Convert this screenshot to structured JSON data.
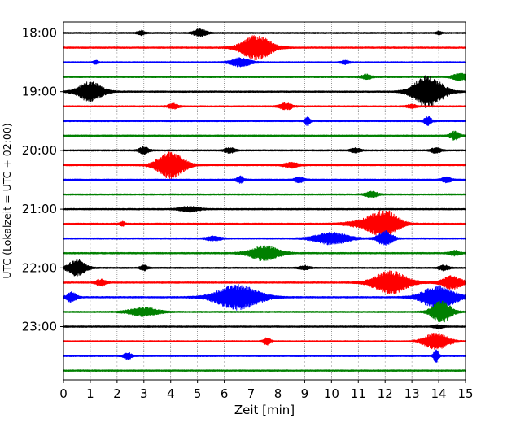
{
  "chart_data": {
    "type": "line",
    "title": "",
    "xlabel": "Zeit  [min]",
    "ylabel": "UTC (Lokalzeit = UTC + 02:00)",
    "xlim": [
      0,
      15
    ],
    "x_ticks": [
      "0",
      "1",
      "2",
      "3",
      "4",
      "5",
      "6",
      "7",
      "8",
      "9",
      "10",
      "11",
      "12",
      "13",
      "14",
      "15"
    ],
    "y_ticks": [
      "18:00",
      "19:00",
      "20:00",
      "21:00",
      "22:00",
      "23:00"
    ],
    "grid": "vertical dotted at each minute",
    "row_interval_minutes": 15,
    "start_time": "18:00",
    "color_cycle": [
      "#000000",
      "#ff0000",
      "#0000ff",
      "#008000"
    ],
    "series": [
      {
        "start": "18:00",
        "noise": 0.9,
        "events": [
          {
            "x": 2.9,
            "amp": 2.5,
            "width": 0.15
          },
          {
            "x": 5.1,
            "amp": 4.5,
            "width": 0.25
          },
          {
            "x": 14.0,
            "amp": 2,
            "width": 0.1
          }
        ]
      },
      {
        "start": "18:15",
        "noise": 0.9,
        "events": [
          {
            "x": 7.2,
            "amp": 15,
            "width": 0.6
          }
        ]
      },
      {
        "start": "18:30",
        "noise": 0.9,
        "events": [
          {
            "x": 1.2,
            "amp": 2,
            "width": 0.1
          },
          {
            "x": 6.6,
            "amp": 5,
            "width": 0.4
          },
          {
            "x": 10.5,
            "amp": 2,
            "width": 0.15
          }
        ]
      },
      {
        "start": "18:45",
        "noise": 0.9,
        "events": [
          {
            "x": 11.3,
            "amp": 3,
            "width": 0.2
          },
          {
            "x": 14.8,
            "amp": 4,
            "width": 0.3
          }
        ]
      },
      {
        "start": "19:00",
        "noise": 0.9,
        "events": [
          {
            "x": 1.0,
            "amp": 12,
            "width": 0.5
          },
          {
            "x": 13.6,
            "amp": 20,
            "width": 0.6
          }
        ]
      },
      {
        "start": "19:15",
        "noise": 0.9,
        "events": [
          {
            "x": 4.1,
            "amp": 3,
            "width": 0.2
          },
          {
            "x": 8.3,
            "amp": 4,
            "width": 0.25
          },
          {
            "x": 13.0,
            "amp": 2,
            "width": 0.2
          }
        ]
      },
      {
        "start": "19:30",
        "noise": 0.9,
        "events": [
          {
            "x": 9.1,
            "amp": 6,
            "width": 0.1
          },
          {
            "x": 13.6,
            "amp": 5,
            "width": 0.15
          }
        ]
      },
      {
        "start": "19:45",
        "noise": 0.9,
        "events": [
          {
            "x": 14.6,
            "amp": 5,
            "width": 0.2
          }
        ]
      },
      {
        "start": "20:00",
        "noise": 0.9,
        "events": [
          {
            "x": 3.0,
            "amp": 4,
            "width": 0.2
          },
          {
            "x": 6.2,
            "amp": 3,
            "width": 0.2
          },
          {
            "x": 10.9,
            "amp": 2.5,
            "width": 0.2
          },
          {
            "x": 13.9,
            "amp": 3,
            "width": 0.2
          }
        ]
      },
      {
        "start": "20:15",
        "noise": 0.9,
        "events": [
          {
            "x": 4.0,
            "amp": 16,
            "width": 0.55
          },
          {
            "x": 8.5,
            "amp": 3,
            "width": 0.3
          }
        ]
      },
      {
        "start": "20:30",
        "noise": 0.9,
        "events": [
          {
            "x": 6.6,
            "amp": 4,
            "width": 0.15
          },
          {
            "x": 8.8,
            "amp": 3,
            "width": 0.2
          },
          {
            "x": 14.3,
            "amp": 3,
            "width": 0.2
          }
        ]
      },
      {
        "start": "20:45",
        "noise": 0.9,
        "events": [
          {
            "x": 11.5,
            "amp": 3.5,
            "width": 0.25
          }
        ]
      },
      {
        "start": "21:00",
        "noise": 0.9,
        "events": [
          {
            "x": 4.7,
            "amp": 3,
            "width": 0.4
          }
        ]
      },
      {
        "start": "21:15",
        "noise": 0.9,
        "events": [
          {
            "x": 2.2,
            "amp": 3,
            "width": 0.1
          },
          {
            "x": 11.4,
            "amp": 5,
            "width": 0.8
          },
          {
            "x": 12.0,
            "amp": 14,
            "width": 0.55
          }
        ]
      },
      {
        "start": "21:30",
        "noise": 0.9,
        "events": [
          {
            "x": 5.6,
            "amp": 2.5,
            "width": 0.3
          },
          {
            "x": 10.0,
            "amp": 7,
            "width": 0.7
          },
          {
            "x": 12.0,
            "amp": 9,
            "width": 0.3
          }
        ]
      },
      {
        "start": "21:45",
        "noise": 0.9,
        "events": [
          {
            "x": 7.5,
            "amp": 9,
            "width": 0.6
          },
          {
            "x": 14.6,
            "amp": 3,
            "width": 0.2
          }
        ]
      },
      {
        "start": "22:00",
        "noise": 0.9,
        "events": [
          {
            "x": 0.5,
            "amp": 10,
            "width": 0.35
          },
          {
            "x": 3.0,
            "amp": 3,
            "width": 0.15
          },
          {
            "x": 9.0,
            "amp": 2.5,
            "width": 0.2
          },
          {
            "x": 14.2,
            "amp": 3,
            "width": 0.2
          }
        ]
      },
      {
        "start": "22:15",
        "noise": 0.9,
        "events": [
          {
            "x": 1.4,
            "amp": 4,
            "width": 0.2
          },
          {
            "x": 12.2,
            "amp": 14,
            "width": 0.7
          },
          {
            "x": 14.5,
            "amp": 8,
            "width": 0.4
          }
        ]
      },
      {
        "start": "22:30",
        "noise": 0.9,
        "events": [
          {
            "x": 0.3,
            "amp": 6,
            "width": 0.2
          },
          {
            "x": 6.5,
            "amp": 15,
            "width": 0.9
          },
          {
            "x": 14.0,
            "amp": 14,
            "width": 0.7
          }
        ]
      },
      {
        "start": "22:45",
        "noise": 0.9,
        "events": [
          {
            "x": 3.0,
            "amp": 5,
            "width": 0.6
          },
          {
            "x": 14.1,
            "amp": 13,
            "width": 0.4
          }
        ]
      },
      {
        "start": "23:00",
        "noise": 0.9,
        "events": [
          {
            "x": 14.0,
            "amp": 2,
            "width": 0.2
          }
        ]
      },
      {
        "start": "23:15",
        "noise": 0.9,
        "events": [
          {
            "x": 7.6,
            "amp": 4,
            "width": 0.15
          },
          {
            "x": 13.9,
            "amp": 10,
            "width": 0.5
          }
        ]
      },
      {
        "start": "23:30",
        "noise": 0.9,
        "events": [
          {
            "x": 2.4,
            "amp": 4,
            "width": 0.15
          },
          {
            "x": 13.9,
            "amp": 8,
            "width": 0.1
          }
        ]
      },
      {
        "start": "23:45",
        "noise": 0.9,
        "events": []
      }
    ]
  }
}
